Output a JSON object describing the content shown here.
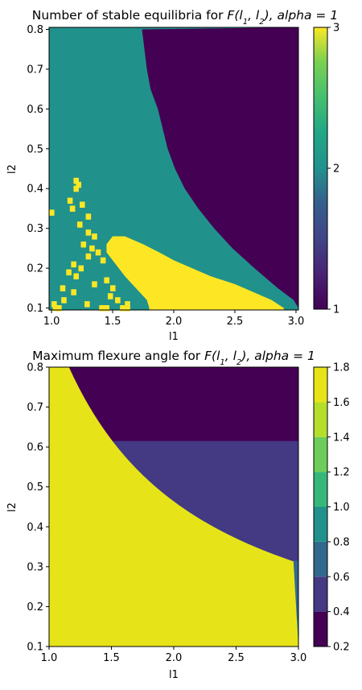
{
  "chart_data": [
    {
      "type": "heatmap",
      "title_prefix": "Number of stable equilibria for ",
      "title_math": "F(l",
      "title_sub1": "1",
      "title_mid": ", l",
      "title_sub2": "2",
      "title_suffix": "), alpha = 1",
      "xlabel": "l1",
      "ylabel": "l2",
      "xlim": [
        0.98,
        3.02
      ],
      "ylim": [
        0.095,
        0.805
      ],
      "x_ticks": [
        1.0,
        1.5,
        2.0,
        2.5,
        3.0
      ],
      "x_tick_labels": [
        "1.0",
        "1.5",
        "2.0",
        "2.5",
        "3.0"
      ],
      "y_ticks": [
        0.1,
        0.2,
        0.3,
        0.4,
        0.5,
        0.6,
        0.7,
        0.8
      ],
      "y_tick_labels": [
        "0.1",
        "0.2",
        "0.3",
        "0.4",
        "0.5",
        "0.6",
        "0.7",
        "0.8"
      ],
      "colorbar": {
        "min": 1,
        "max": 3,
        "ticks": [
          1,
          2,
          3
        ],
        "tick_labels": [
          "1",
          "2",
          "3"
        ]
      },
      "grid": false,
      "boundary_1_region": {
        "description": "purple (1 equilibrium) region to the right of boundary l1_b(l2)",
        "l2": [
          0.8,
          0.7,
          0.65,
          0.6,
          0.55,
          0.5,
          0.45,
          0.4,
          0.35,
          0.3,
          0.25,
          0.2,
          0.15,
          0.12,
          0.1
        ],
        "l1": [
          1.74,
          1.78,
          1.81,
          1.87,
          1.91,
          1.95,
          2.01,
          2.09,
          2.2,
          2.33,
          2.48,
          2.66,
          2.85,
          2.98,
          3.02
        ]
      },
      "yellow_band": {
        "description": "3 equilibria band: l1 range at given l2",
        "l2": [
          0.1,
          0.12,
          0.14,
          0.16,
          0.18,
          0.2,
          0.22,
          0.24,
          0.26,
          0.28
        ],
        "l1_start": [
          1.8,
          1.78,
          1.72,
          1.66,
          1.6,
          1.55,
          1.5,
          1.45,
          1.45,
          1.5
        ],
        "l1_end": [
          2.9,
          2.8,
          2.65,
          2.5,
          2.3,
          2.15,
          2.0,
          1.88,
          1.75,
          1.6
        ]
      },
      "yellow_scatter": [
        [
          1.0,
          0.34
        ],
        [
          1.2,
          0.42
        ],
        [
          1.22,
          0.41
        ],
        [
          1.2,
          0.4
        ],
        [
          1.15,
          0.37
        ],
        [
          1.17,
          0.35
        ],
        [
          1.25,
          0.36
        ],
        [
          1.3,
          0.33
        ],
        [
          1.23,
          0.31
        ],
        [
          1.3,
          0.29
        ],
        [
          1.35,
          0.28
        ],
        [
          1.26,
          0.26
        ],
        [
          1.33,
          0.25
        ],
        [
          1.38,
          0.24
        ],
        [
          1.42,
          0.22
        ],
        [
          1.3,
          0.23
        ],
        [
          1.18,
          0.21
        ],
        [
          1.24,
          0.2
        ],
        [
          1.14,
          0.19
        ],
        [
          1.2,
          0.18
        ],
        [
          1.45,
          0.17
        ],
        [
          1.35,
          0.16
        ],
        [
          1.09,
          0.15
        ],
        [
          1.18,
          0.14
        ],
        [
          1.5,
          0.15
        ],
        [
          1.02,
          0.11
        ],
        [
          1.1,
          0.12
        ],
        [
          1.29,
          0.11
        ],
        [
          1.48,
          0.13
        ],
        [
          1.54,
          0.12
        ],
        [
          1.62,
          0.11
        ],
        [
          1.03,
          0.1
        ],
        [
          1.06,
          0.1
        ],
        [
          1.41,
          0.1
        ],
        [
          1.45,
          0.1
        ],
        [
          1.58,
          0.1
        ],
        [
          1.62,
          0.1
        ]
      ],
      "colormap": [
        "#440154",
        "#21918c",
        "#fde725"
      ]
    },
    {
      "type": "contourf",
      "title_prefix": "Maximum flexure angle for ",
      "title_math": "F(l",
      "title_sub1": "1",
      "title_mid": ", l",
      "title_sub2": "2",
      "title_suffix": "), alpha = 1",
      "xlabel": "l1",
      "ylabel": "l2",
      "xlim": [
        1.0,
        3.0
      ],
      "ylim": [
        0.1,
        0.8
      ],
      "x_ticks": [
        1.0,
        1.5,
        2.0,
        2.5,
        3.0
      ],
      "x_tick_labels": [
        "1.0",
        "1.5",
        "2.0",
        "2.5",
        "3.0"
      ],
      "y_ticks": [
        0.1,
        0.2,
        0.3,
        0.4,
        0.5,
        0.6,
        0.7,
        0.8
      ],
      "y_tick_labels": [
        "0.1",
        "0.2",
        "0.3",
        "0.4",
        "0.5",
        "0.6",
        "0.7",
        "0.8"
      ],
      "levels": [
        0.2,
        0.4,
        0.6,
        0.8,
        1.0,
        1.2,
        1.4,
        1.6,
        1.8
      ],
      "level_colors": [
        "#440154",
        "#443983",
        "#31688e",
        "#21918c",
        "#35b779",
        "#6ccd5a",
        "#b5de2b",
        "#e6e419"
      ],
      "colorbar": {
        "ticks": [
          0.2,
          0.4,
          0.6,
          0.8,
          1.0,
          1.2,
          1.4,
          1.6,
          1.8
        ],
        "tick_labels": [
          "0.2",
          "0.4",
          "0.6",
          "0.8",
          "1.0",
          "1.2",
          "1.4",
          "1.6",
          "1.8"
        ]
      },
      "grid": false,
      "contour_plateaus": {
        "0.4": 0.615,
        "0.6": 0.315,
        "0.8": 0.165
      }
    }
  ]
}
